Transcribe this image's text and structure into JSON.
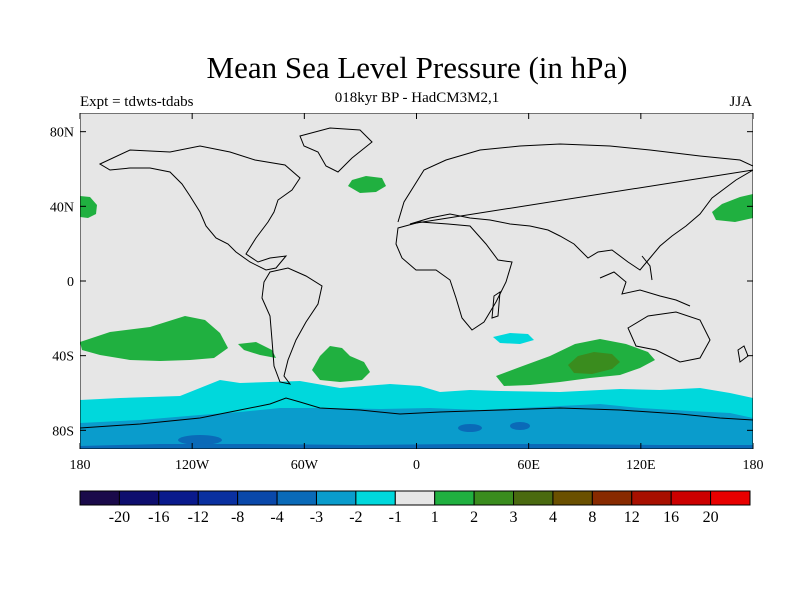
{
  "title": "Mean Sea Level Pressure (in hPa)",
  "subtitle": "018kyr BP - HadCM3M2,1",
  "experiment": "Expt = tdwts-tdabs",
  "season": "JJA",
  "map": {
    "lon_range": [
      -180,
      180
    ],
    "lat_range": [
      -90,
      90
    ],
    "lat_ticks": [
      {
        "value": 80,
        "label": "80N"
      },
      {
        "value": 40,
        "label": "40N"
      },
      {
        "value": 0,
        "label": "0"
      },
      {
        "value": -40,
        "label": "40S"
      },
      {
        "value": -80,
        "label": "80S"
      }
    ],
    "lon_ticks": [
      {
        "value": -180,
        "label": "180"
      },
      {
        "value": -120,
        "label": "120W"
      },
      {
        "value": -60,
        "label": "60W"
      },
      {
        "value": 0,
        "label": "0"
      },
      {
        "value": 60,
        "label": "60E"
      },
      {
        "value": 120,
        "label": "120E"
      },
      {
        "value": 180,
        "label": "180"
      }
    ],
    "background_color": "#e6e6e6"
  },
  "colorbar": {
    "labels": [
      "-20",
      "-16",
      "-12",
      "-8",
      "-4",
      "-3",
      "-2",
      "-1",
      "1",
      "2",
      "3",
      "4",
      "8",
      "12",
      "16",
      "20"
    ],
    "colors": [
      "#1a0a4a",
      "#0e0e6e",
      "#0a1a8c",
      "#0a30a0",
      "#0a48aa",
      "#0a6ab8",
      "#0a9ccc",
      "#00d8dc",
      "#e6e6e6",
      "#20b040",
      "#3a8c1e",
      "#4a6a10",
      "#6a5000",
      "#882a00",
      "#a81000",
      "#cc0000",
      "#e80000"
    ]
  }
}
